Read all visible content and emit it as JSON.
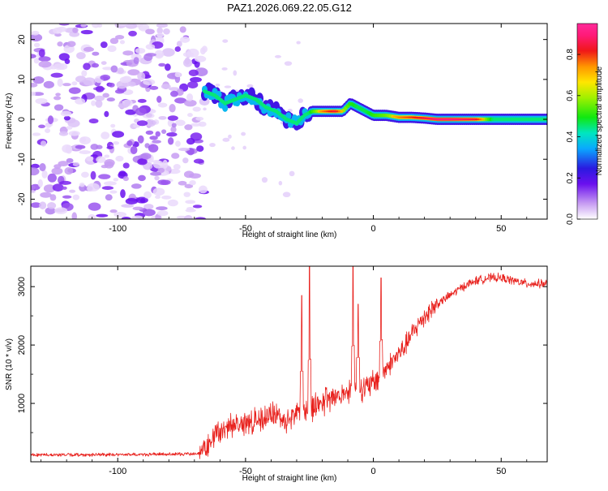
{
  "title": "PAZ1.2026.069.22.05.G12",
  "chart_data": [
    {
      "type": "heatmap",
      "name": "spectrogram",
      "xlabel": "Height of straight line (km)",
      "ylabel": "Frequency (Hz)",
      "xlim": [
        -134,
        68
      ],
      "ylim": [
        -25,
        24
      ],
      "xticks": [
        -100,
        -50,
        0,
        50
      ],
      "xtick_labels": [
        "-100",
        "-50",
        "0",
        "50"
      ],
      "yticks": [
        20,
        10,
        0,
        -10,
        -20
      ],
      "ytick_labels": [
        "20",
        "10",
        "0",
        "-10",
        "-20"
      ],
      "noise_region_x": [
        -134,
        -66
      ],
      "ridge": {
        "x": [
          -66,
          -62,
          -58,
          -54,
          -50,
          -46,
          -42,
          -38,
          -34,
          -30,
          -27,
          -24,
          -20,
          -15,
          -12,
          -9,
          -6,
          -3,
          0,
          5,
          10,
          15,
          20,
          25,
          30,
          40,
          50,
          60,
          68
        ],
        "y": [
          7,
          6,
          4,
          5,
          6,
          5,
          3,
          2,
          0,
          -1,
          1,
          2,
          2,
          2,
          2,
          4,
          3,
          2,
          1,
          1,
          0.5,
          0.5,
          0.3,
          0,
          0,
          0,
          0,
          0,
          0
        ],
        "amplitude": [
          0.25,
          0.35,
          0.3,
          0.35,
          0.35,
          0.35,
          0.35,
          0.35,
          0.3,
          0.35,
          0.45,
          0.6,
          0.75,
          0.85,
          0.7,
          0.6,
          0.55,
          0.55,
          0.6,
          0.65,
          0.75,
          0.8,
          0.85,
          0.9,
          0.9,
          0.85,
          0.4,
          0.35,
          0.35
        ]
      },
      "colorbar": {
        "label": "Normalized spectral amplitude",
        "ticks": [
          0.0,
          0.2,
          0.4,
          0.6,
          0.8
        ],
        "tick_labels": [
          "0.0",
          "0.2",
          "0.4",
          "0.6",
          "0.8"
        ],
        "range": [
          0,
          0.95
        ]
      }
    },
    {
      "type": "line",
      "name": "snr",
      "xlabel": "Height of straight line (km)",
      "ylabel": "SNR (10 * v/v)",
      "xlim": [
        -134,
        68
      ],
      "ylim": [
        0,
        3350
      ],
      "xticks": [
        -100,
        -50,
        0,
        50
      ],
      "xtick_labels": [
        "-100",
        "-50",
        "0",
        "50"
      ],
      "yticks": [
        1000,
        2000,
        3000
      ],
      "ytick_labels": [
        "1000",
        "2000",
        "3000"
      ],
      "color": "#e8201c",
      "x": [
        -134,
        -110,
        -90,
        -75,
        -68,
        -65,
        -62,
        -58,
        -54,
        -50,
        -46,
        -42,
        -38,
        -34,
        -30,
        -26,
        -22,
        -18,
        -14,
        -10,
        -6,
        -3,
        0,
        4,
        8,
        12,
        16,
        20,
        25,
        30,
        35,
        40,
        45,
        50,
        55,
        60,
        68
      ],
      "values": [
        120,
        120,
        125,
        130,
        150,
        250,
        450,
        550,
        650,
        650,
        700,
        800,
        800,
        700,
        850,
        850,
        1000,
        1050,
        1150,
        1200,
        1300,
        1250,
        1350,
        1550,
        1750,
        1950,
        2250,
        2500,
        2700,
        2850,
        3000,
        3100,
        3150,
        3150,
        3100,
        3050,
        3050
      ],
      "spikes": [
        {
          "x": -28,
          "y": 2850
        },
        {
          "x": -25,
          "y": 3350
        },
        {
          "x": -8,
          "y": 3350
        },
        {
          "x": -6,
          "y": 2700
        },
        {
          "x": 3,
          "y": 3150
        }
      ]
    }
  ]
}
